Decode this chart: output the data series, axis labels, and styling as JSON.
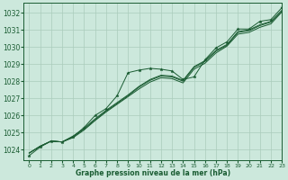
{
  "background_color": "#cce8dc",
  "grid_color": "#aaccbb",
  "line_color": "#1a5c32",
  "marker_color": "#1a5c32",
  "xlabel": "Graphe pression niveau de la mer (hPa)",
  "xlim": [
    -0.5,
    23
  ],
  "ylim": [
    1023.4,
    1032.6
  ],
  "yticks": [
    1024,
    1025,
    1026,
    1027,
    1028,
    1029,
    1030,
    1031,
    1032
  ],
  "xticks": [
    0,
    1,
    2,
    3,
    4,
    5,
    6,
    7,
    8,
    9,
    10,
    11,
    12,
    13,
    14,
    15,
    16,
    17,
    18,
    19,
    20,
    21,
    22,
    23
  ],
  "series_plain": [
    [
      1023.8,
      1024.2,
      1024.5,
      1024.45,
      1024.7,
      1025.15,
      1025.7,
      1026.2,
      1026.65,
      1027.1,
      1027.55,
      1027.95,
      1028.2,
      1028.15,
      1027.9,
      1028.7,
      1029.05,
      1029.65,
      1030.05,
      1030.75,
      1030.85,
      1031.15,
      1031.35,
      1032.05
    ],
    [
      1023.8,
      1024.2,
      1024.5,
      1024.45,
      1024.75,
      1025.2,
      1025.75,
      1026.25,
      1026.7,
      1027.15,
      1027.65,
      1028.05,
      1028.3,
      1028.25,
      1028.0,
      1028.8,
      1029.15,
      1029.75,
      1030.1,
      1030.85,
      1030.95,
      1031.25,
      1031.45,
      1032.1
    ],
    [
      1023.8,
      1024.2,
      1024.5,
      1024.45,
      1024.8,
      1025.25,
      1025.8,
      1026.3,
      1026.75,
      1027.2,
      1027.7,
      1028.1,
      1028.35,
      1028.3,
      1028.05,
      1028.85,
      1029.2,
      1029.8,
      1030.15,
      1030.9,
      1031.0,
      1031.3,
      1031.5,
      1032.15
    ]
  ],
  "series_marker": [
    1023.65,
    1024.15,
    1024.5,
    1024.45,
    1024.75,
    1025.3,
    1026.0,
    1026.4,
    1027.15,
    1028.5,
    1028.65,
    1028.75,
    1028.7,
    1028.6,
    1028.1,
    1028.25,
    1029.25,
    1029.95,
    1030.3,
    1031.05,
    1031.05,
    1031.5,
    1031.6,
    1032.3
  ]
}
